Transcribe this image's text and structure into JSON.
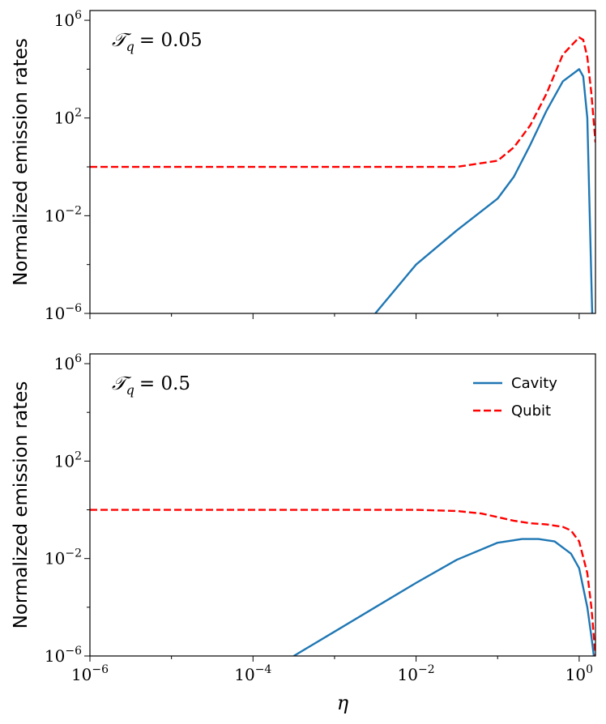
{
  "chart_data": [
    {
      "type": "line",
      "panel": "top",
      "annotation": {
        "symbol": "𝒯",
        "subscript": "q",
        "value": "= 0.05"
      },
      "ylabel": "Normalized emission rates",
      "xlabel": "",
      "xscale": "log",
      "yscale": "log",
      "xlim_log10": [
        -6,
        0.2
      ],
      "ylim_log10": [
        -6,
        6.4
      ],
      "y_ticks": [
        {
          "base": "10",
          "exp": "6",
          "log": 6
        },
        {
          "base": "10",
          "exp": "2",
          "log": 2
        },
        {
          "base": "10",
          "exp": "−2",
          "log": -2
        },
        {
          "base": "10",
          "exp": "−6",
          "log": -6
        }
      ],
      "series": [
        {
          "name": "Cavity",
          "color": "#1f77b4",
          "style": "solid",
          "log10_x": [
            -2.5,
            -2.0,
            -1.5,
            -1.0,
            -0.8,
            -0.6,
            -0.4,
            -0.2,
            0.0,
            0.05,
            0.1,
            0.13,
            0.16
          ],
          "log10_y": [
            -6.0,
            -4.0,
            -2.6,
            -1.3,
            -0.4,
            0.9,
            2.3,
            3.5,
            4.0,
            3.7,
            2.0,
            -2.0,
            -6.0
          ]
        },
        {
          "name": "Qubit",
          "color": "#ff0000",
          "style": "dashed",
          "log10_x": [
            -6.0,
            -3.0,
            -1.5,
            -1.0,
            -0.8,
            -0.6,
            -0.4,
            -0.2,
            0.0,
            0.05,
            0.1,
            0.15,
            0.2
          ],
          "log10_y": [
            0.0,
            0.0,
            0.0,
            0.25,
            0.8,
            1.7,
            3.0,
            4.6,
            5.3,
            5.2,
            4.5,
            3.0,
            1.0
          ]
        }
      ]
    },
    {
      "type": "line",
      "panel": "bottom",
      "annotation": {
        "symbol": "𝒯",
        "subscript": "q",
        "value": "= 0.5"
      },
      "ylabel": "Normalized emission rates",
      "xlabel": "η",
      "xscale": "log",
      "yscale": "log",
      "xlim_log10": [
        -6,
        0.2
      ],
      "ylim_log10": [
        -6,
        6.4
      ],
      "x_ticks": [
        {
          "base": "10",
          "exp": "−6",
          "log": -6
        },
        {
          "base": "10",
          "exp": "−4",
          "log": -4
        },
        {
          "base": "10",
          "exp": "−2",
          "log": -2
        },
        {
          "base": "10",
          "exp": "0",
          "log": 0
        }
      ],
      "y_ticks": [
        {
          "base": "10",
          "exp": "6",
          "log": 6
        },
        {
          "base": "10",
          "exp": "2",
          "log": 2
        },
        {
          "base": "10",
          "exp": "−2",
          "log": -2
        },
        {
          "base": "10",
          "exp": "−6",
          "log": -6
        }
      ],
      "legend": {
        "location": "top-right",
        "entries": [
          "Cavity",
          "Qubit"
        ]
      },
      "series": [
        {
          "name": "Cavity",
          "color": "#1f77b4",
          "style": "solid",
          "log10_x": [
            -3.5,
            -3.0,
            -2.5,
            -2.0,
            -1.5,
            -1.0,
            -0.7,
            -0.5,
            -0.3,
            -0.1,
            0.0,
            0.1,
            0.15,
            0.18
          ],
          "log10_y": [
            -6.0,
            -5.0,
            -4.0,
            -3.0,
            -2.05,
            -1.35,
            -1.2,
            -1.2,
            -1.3,
            -1.8,
            -2.4,
            -4.0,
            -5.2,
            -6.0
          ]
        },
        {
          "name": "Qubit",
          "color": "#ff0000",
          "style": "dashed",
          "log10_x": [
            -6.0,
            -3.0,
            -2.0,
            -1.5,
            -1.2,
            -1.0,
            -0.8,
            -0.6,
            -0.4,
            -0.2,
            -0.1,
            0.0,
            0.1,
            0.15,
            0.2
          ],
          "log10_y": [
            0.0,
            0.0,
            0.0,
            -0.05,
            -0.15,
            -0.3,
            -0.45,
            -0.55,
            -0.6,
            -0.7,
            -0.85,
            -1.3,
            -2.6,
            -4.0,
            -6.0
          ]
        }
      ]
    }
  ]
}
